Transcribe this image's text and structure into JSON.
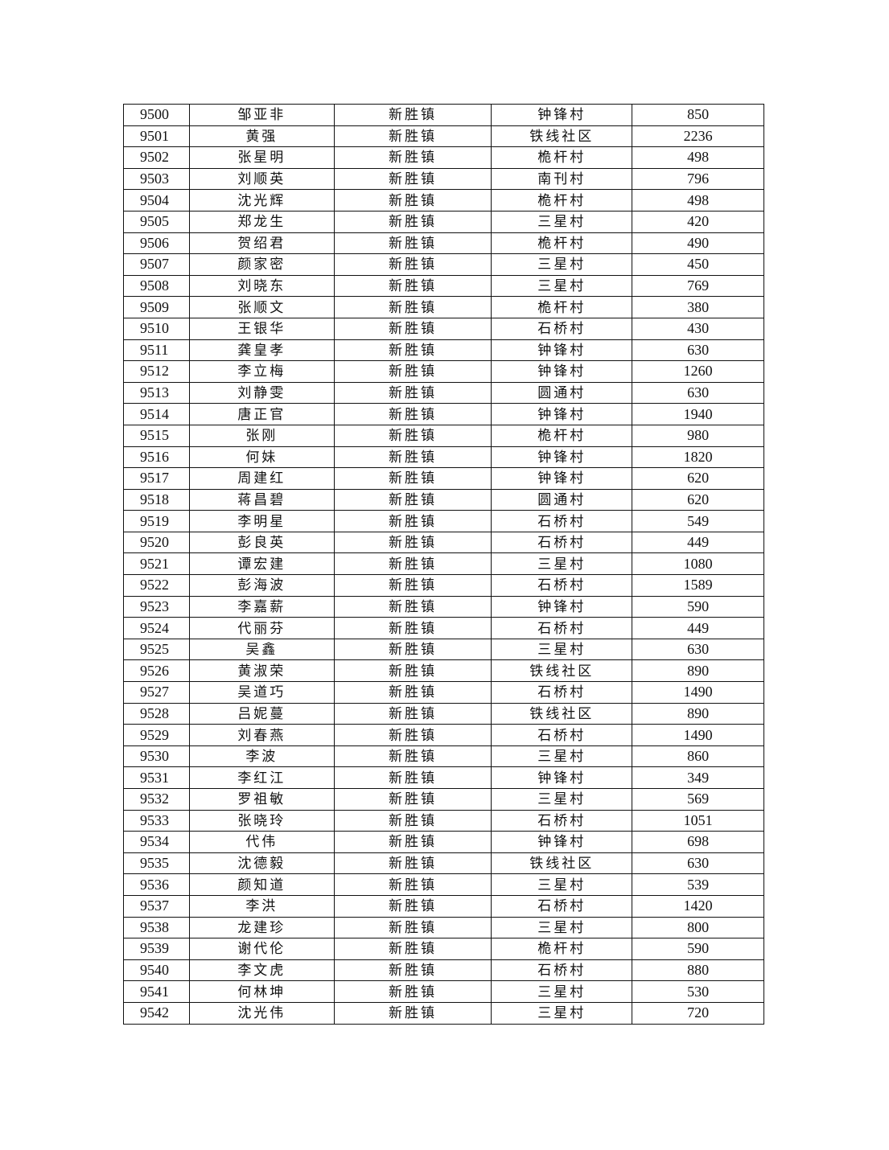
{
  "table": {
    "rows": [
      [
        "9500",
        "邹亚非",
        "新胜镇",
        "钟锋村",
        "850"
      ],
      [
        "9501",
        "黄强",
        "新胜镇",
        "铁线社区",
        "2236"
      ],
      [
        "9502",
        "张星明",
        "新胜镇",
        "桅杆村",
        "498"
      ],
      [
        "9503",
        "刘顺英",
        "新胜镇",
        "南刊村",
        "796"
      ],
      [
        "9504",
        "沈光辉",
        "新胜镇",
        "桅杆村",
        "498"
      ],
      [
        "9505",
        "郑龙生",
        "新胜镇",
        "三星村",
        "420"
      ],
      [
        "9506",
        "贺绍君",
        "新胜镇",
        "桅杆村",
        "490"
      ],
      [
        "9507",
        "颜家密",
        "新胜镇",
        "三星村",
        "450"
      ],
      [
        "9508",
        "刘晓东",
        "新胜镇",
        "三星村",
        "769"
      ],
      [
        "9509",
        "张顺文",
        "新胜镇",
        "桅杆村",
        "380"
      ],
      [
        "9510",
        "王银华",
        "新胜镇",
        "石桥村",
        "430"
      ],
      [
        "9511",
        "龚皇孝",
        "新胜镇",
        "钟锋村",
        "630"
      ],
      [
        "9512",
        "李立梅",
        "新胜镇",
        "钟锋村",
        "1260"
      ],
      [
        "9513",
        "刘静雯",
        "新胜镇",
        "圆通村",
        "630"
      ],
      [
        "9514",
        "唐正官",
        "新胜镇",
        "钟锋村",
        "1940"
      ],
      [
        "9515",
        "张刚",
        "新胜镇",
        "桅杆村",
        "980"
      ],
      [
        "9516",
        "何妹",
        "新胜镇",
        "钟锋村",
        "1820"
      ],
      [
        "9517",
        "周建红",
        "新胜镇",
        "钟锋村",
        "620"
      ],
      [
        "9518",
        "蒋昌碧",
        "新胜镇",
        "圆通村",
        "620"
      ],
      [
        "9519",
        "李明星",
        "新胜镇",
        "石桥村",
        "549"
      ],
      [
        "9520",
        "彭良英",
        "新胜镇",
        "石桥村",
        "449"
      ],
      [
        "9521",
        "谭宏建",
        "新胜镇",
        "三星村",
        "1080"
      ],
      [
        "9522",
        "彭海波",
        "新胜镇",
        "石桥村",
        "1589"
      ],
      [
        "9523",
        "李嘉薪",
        "新胜镇",
        "钟锋村",
        "590"
      ],
      [
        "9524",
        "代丽芬",
        "新胜镇",
        "石桥村",
        "449"
      ],
      [
        "9525",
        "吴鑫",
        "新胜镇",
        "三星村",
        "630"
      ],
      [
        "9526",
        "黄淑荣",
        "新胜镇",
        "铁线社区",
        "890"
      ],
      [
        "9527",
        "吴道巧",
        "新胜镇",
        "石桥村",
        "1490"
      ],
      [
        "9528",
        "吕妮蔓",
        "新胜镇",
        "铁线社区",
        "890"
      ],
      [
        "9529",
        "刘春燕",
        "新胜镇",
        "石桥村",
        "1490"
      ],
      [
        "9530",
        "李波",
        "新胜镇",
        "三星村",
        "860"
      ],
      [
        "9531",
        "李红江",
        "新胜镇",
        "钟锋村",
        "349"
      ],
      [
        "9532",
        "罗祖敏",
        "新胜镇",
        "三星村",
        "569"
      ],
      [
        "9533",
        "张晓玲",
        "新胜镇",
        "石桥村",
        "1051"
      ],
      [
        "9534",
        "代伟",
        "新胜镇",
        "钟锋村",
        "698"
      ],
      [
        "9535",
        "沈德毅",
        "新胜镇",
        "铁线社区",
        "630"
      ],
      [
        "9536",
        "颜知道",
        "新胜镇",
        "三星村",
        "539"
      ],
      [
        "9537",
        "李洪",
        "新胜镇",
        "石桥村",
        "1420"
      ],
      [
        "9538",
        "龙建珍",
        "新胜镇",
        "三星村",
        "800"
      ],
      [
        "9539",
        "谢代伦",
        "新胜镇",
        "桅杆村",
        "590"
      ],
      [
        "9540",
        "李文虎",
        "新胜镇",
        "石桥村",
        "880"
      ],
      [
        "9541",
        "何林坤",
        "新胜镇",
        "三星村",
        "530"
      ],
      [
        "9542",
        "沈光伟",
        "新胜镇",
        "三星村",
        "720"
      ]
    ]
  }
}
